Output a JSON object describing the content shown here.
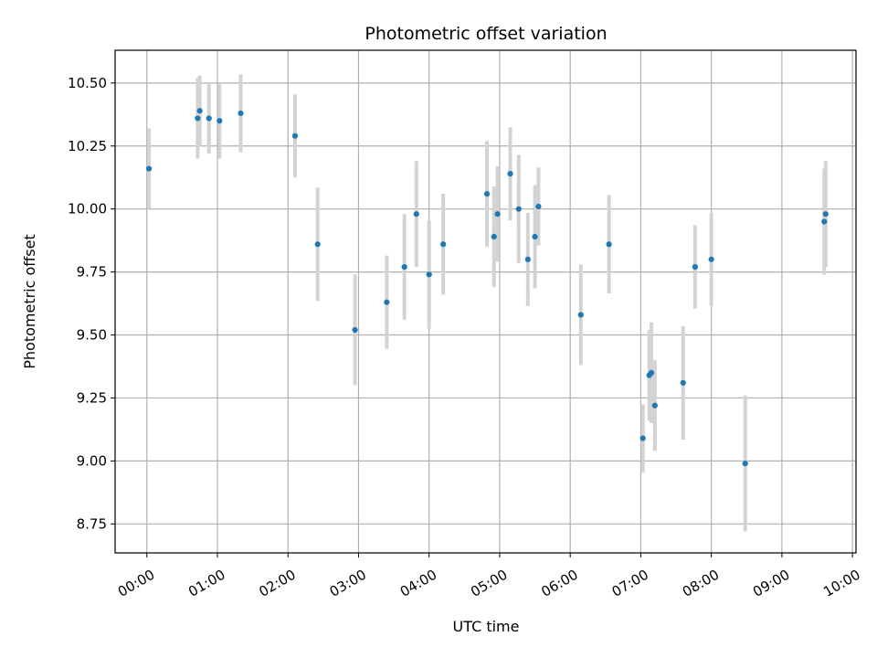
{
  "chart_data": {
    "type": "scatter",
    "title": "Photometric offset variation",
    "xlabel": "UTC time",
    "ylabel": "Photometric offset",
    "x_unit": "hours (UTC)",
    "xlim": [
      -0.45,
      10.05
    ],
    "ylim": [
      8.635,
      10.63
    ],
    "grid": true,
    "marker_color": "#1f77b4",
    "errorbar_color": "#d3d3d3",
    "x_ticks": [
      {
        "value": 0,
        "label": "00:00"
      },
      {
        "value": 1,
        "label": "01:00"
      },
      {
        "value": 2,
        "label": "02:00"
      },
      {
        "value": 3,
        "label": "03:00"
      },
      {
        "value": 4,
        "label": "04:00"
      },
      {
        "value": 5,
        "label": "05:00"
      },
      {
        "value": 6,
        "label": "06:00"
      },
      {
        "value": 7,
        "label": "07:00"
      },
      {
        "value": 8,
        "label": "08:00"
      },
      {
        "value": 9,
        "label": "09:00"
      },
      {
        "value": 10,
        "label": "10:00"
      }
    ],
    "y_ticks": [
      {
        "value": 8.75,
        "label": "8.75"
      },
      {
        "value": 9.0,
        "label": "9.00"
      },
      {
        "value": 9.25,
        "label": "9.25"
      },
      {
        "value": 9.5,
        "label": "9.50"
      },
      {
        "value": 9.75,
        "label": "9.75"
      },
      {
        "value": 10.0,
        "label": "10.00"
      },
      {
        "value": 10.25,
        "label": "10.25"
      },
      {
        "value": 10.5,
        "label": "10.50"
      }
    ],
    "points": [
      {
        "x": 0.03,
        "y": 10.16,
        "err": 0.16
      },
      {
        "x": 0.72,
        "y": 10.36,
        "err": 0.16
      },
      {
        "x": 0.75,
        "y": 10.39,
        "err": 0.14
      },
      {
        "x": 0.88,
        "y": 10.36,
        "err": 0.14
      },
      {
        "x": 1.03,
        "y": 10.35,
        "err": 0.15
      },
      {
        "x": 1.33,
        "y": 10.38,
        "err": 0.155
      },
      {
        "x": 2.1,
        "y": 10.29,
        "err": 0.165
      },
      {
        "x": 2.42,
        "y": 9.86,
        "err": 0.225
      },
      {
        "x": 2.95,
        "y": 9.52,
        "err": 0.22
      },
      {
        "x": 3.4,
        "y": 9.63,
        "err": 0.185
      },
      {
        "x": 3.65,
        "y": 9.77,
        "err": 0.21
      },
      {
        "x": 3.82,
        "y": 9.98,
        "err": 0.21
      },
      {
        "x": 4.0,
        "y": 9.74,
        "err": 0.215
      },
      {
        "x": 4.2,
        "y": 9.86,
        "err": 0.2
      },
      {
        "x": 4.82,
        "y": 10.06,
        "err": 0.21
      },
      {
        "x": 4.92,
        "y": 9.89,
        "err": 0.2
      },
      {
        "x": 4.97,
        "y": 9.98,
        "err": 0.19
      },
      {
        "x": 5.15,
        "y": 10.14,
        "err": 0.185
      },
      {
        "x": 5.27,
        "y": 10.0,
        "err": 0.215
      },
      {
        "x": 5.4,
        "y": 9.8,
        "err": 0.185
      },
      {
        "x": 5.5,
        "y": 9.89,
        "err": 0.205
      },
      {
        "x": 5.55,
        "y": 10.01,
        "err": 0.155
      },
      {
        "x": 6.15,
        "y": 9.58,
        "err": 0.2
      },
      {
        "x": 6.55,
        "y": 9.86,
        "err": 0.195
      },
      {
        "x": 7.03,
        "y": 9.09,
        "err": 0.135
      },
      {
        "x": 7.12,
        "y": 9.34,
        "err": 0.18
      },
      {
        "x": 7.15,
        "y": 9.35,
        "err": 0.2
      },
      {
        "x": 7.2,
        "y": 9.22,
        "err": 0.18
      },
      {
        "x": 7.6,
        "y": 9.31,
        "err": 0.225
      },
      {
        "x": 7.77,
        "y": 9.77,
        "err": 0.165
      },
      {
        "x": 8.0,
        "y": 9.8,
        "err": 0.185
      },
      {
        "x": 8.48,
        "y": 8.99,
        "err": 0.27
      },
      {
        "x": 9.6,
        "y": 9.95,
        "err": 0.21
      },
      {
        "x": 9.62,
        "y": 9.98,
        "err": 0.21
      }
    ]
  }
}
